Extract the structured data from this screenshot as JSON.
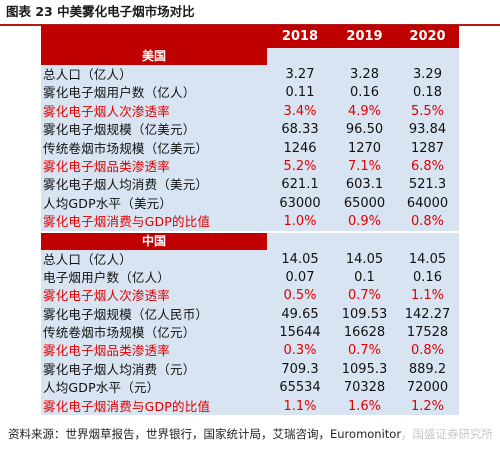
{
  "title": "图表 23  中美雾化电子烟市场对比",
  "headers": [
    "2018",
    "2019",
    "2020"
  ],
  "sections": [
    {
      "label": "美国",
      "rows": [
        {
          "label": "总人口（亿人）",
          "values": [
            "3.27",
            "3.28",
            "3.29"
          ],
          "highlight": false
        },
        {
          "label": "雾化电子烟用户数（亿人）",
          "values": [
            "0.11",
            "0.16",
            "0.18"
          ],
          "highlight": false
        },
        {
          "label": "雾化电子烟人次渗透率",
          "values": [
            "3.4%",
            "4.9%",
            "5.5%"
          ],
          "highlight": true
        },
        {
          "label": "雾化电子烟规模（亿美元）",
          "values": [
            "68.33",
            "96.50",
            "93.84"
          ],
          "highlight": false
        },
        {
          "label": "传统卷烟市场规模（亿美元）",
          "values": [
            "1246",
            "1270",
            "1287"
          ],
          "highlight": false
        },
        {
          "label": "雾化电子烟品类渗透率",
          "values": [
            "5.2%",
            "7.1%",
            "6.8%"
          ],
          "highlight": true
        },
        {
          "label": "雾化电子烟人均消费（美元）",
          "values": [
            "621.1",
            "603.1",
            "521.3"
          ],
          "highlight": false
        },
        {
          "label": "人均GDP水平（美元）",
          "values": [
            "63000",
            "65000",
            "64000"
          ],
          "highlight": false
        },
        {
          "label": "雾化电子烟消费与GDP的比值",
          "values": [
            "1.0%",
            "0.9%",
            "0.8%"
          ],
          "highlight": true
        }
      ]
    },
    {
      "label": "中国",
      "rows": [
        {
          "label": "总人口（亿人）",
          "values": [
            "14.05",
            "14.05",
            "14.05"
          ],
          "highlight": false
        },
        {
          "label": "电子烟用户数（亿人）",
          "values": [
            "0.07",
            "0.1",
            "0.16"
          ],
          "highlight": false
        },
        {
          "label": "雾化电子烟人次渗透率",
          "values": [
            "0.5%",
            "0.7%",
            "1.1%"
          ],
          "highlight": true
        },
        {
          "label": "雾化电子烟规模（亿人民币）",
          "values": [
            "49.65",
            "109.53",
            "142.27"
          ],
          "highlight": false
        },
        {
          "label": "传统卷烟市场规模（亿元）",
          "values": [
            "15644",
            "16628",
            "17528"
          ],
          "highlight": false
        },
        {
          "label": "雾化电子烟品类渗透率",
          "values": [
            "0.3%",
            "0.7%",
            "0.8%"
          ],
          "highlight": true
        },
        {
          "label": "雾化电子烟人均消费（元）",
          "values": [
            "709.3",
            "1095.3",
            "889.2"
          ],
          "highlight": false
        },
        {
          "label": "人均GDP水平（元）",
          "values": [
            "65534",
            "70328",
            "72000"
          ],
          "highlight": false
        },
        {
          "label": "雾化电子烟消费与GDP的比值",
          "values": [
            "1.1%",
            "1.6%",
            "1.2%"
          ],
          "highlight": true
        }
      ]
    }
  ],
  "source": "资料来源：世界烟草报告，世界银行，国家统计局，艾瑞咨询，Euromonitor，国盛证券研究所",
  "watermark": "国盛证",
  "colors": {
    "accent": "#c00000",
    "highlight_text": "#e00000",
    "table_bg": "#d8e4f2"
  }
}
